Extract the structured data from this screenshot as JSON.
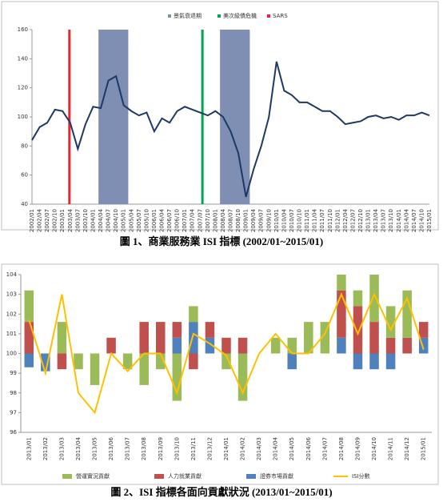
{
  "chart_data": [
    {
      "type": "line",
      "caption": "圖 1、商業服務業 ISI 指標 (2002/01~2015/01)",
      "categories": [
        "2002/01",
        "2002/04",
        "2002/07",
        "2002/10",
        "2003/01",
        "2003/04",
        "2003/07",
        "2003/10",
        "2004/01",
        "2004/04",
        "2004/07",
        "2004/10",
        "2005/01",
        "2005/04",
        "2005/07",
        "2005/10",
        "2006/01",
        "2006/04",
        "2006/07",
        "2006/10",
        "2007/01",
        "2007/04",
        "2007/07",
        "2007/10",
        "2008/01",
        "2008/04",
        "2008/07",
        "2008/10",
        "2009/01",
        "2009/04",
        "2009/07",
        "2009/10",
        "2010/01",
        "2010/04",
        "2010/07",
        "2010/10",
        "2011/01",
        "2011/04",
        "2011/07",
        "2011/10",
        "2012/01",
        "2012/04",
        "2012/07",
        "2012/10",
        "2013/01",
        "2013/04",
        "2013/07",
        "2013/10",
        "2014/01",
        "2014/04",
        "2014/07",
        "2014/10",
        "2015/01"
      ],
      "values": [
        84,
        93,
        96,
        105,
        104,
        96,
        78,
        95,
        107,
        106,
        125,
        128,
        108,
        104,
        101,
        103,
        90,
        99,
        96,
        104,
        107,
        105,
        103,
        101,
        104,
        100,
        90,
        75,
        45,
        64,
        80,
        100,
        138,
        118,
        115,
        110,
        110,
        107,
        104,
        104,
        100,
        95,
        96,
        97,
        100,
        101,
        99,
        100,
        98,
        101,
        101,
        103,
        101
      ],
      "color": "#1f3864",
      "series": [
        {
          "name": "景氣衰退期",
          "color": "#7f8fb3",
          "spans": [
            [
              8.7,
              12.6
            ],
            [
              24.6,
              28.5
            ]
          ]
        },
        {
          "name": "美次級債危機",
          "color": "#00a651",
          "at": [
            22.3
          ]
        },
        {
          "name": "SARS",
          "color": "#e8262c",
          "at": [
            4.9
          ]
        }
      ],
      "ylim": [
        40,
        160
      ],
      "yticks": [
        40,
        60,
        80,
        100,
        120,
        140,
        160
      ],
      "grid": false
    },
    {
      "type": "bar",
      "caption": "圖 2、ISI 指標各面向貢獻狀況 (2013/01~2015/01)",
      "categories": [
        "2013/01",
        "2013/02",
        "2013/03",
        "2013/04",
        "2013/05",
        "2013/06",
        "2013/07",
        "2013/08",
        "2013/09",
        "2013/10",
        "2013/11",
        "2013/12",
        "2014/01",
        "2014/02",
        "2014/03",
        "2014/04",
        "2014/05",
        "2014/06",
        "2014/07",
        "2014/08",
        "2014/09",
        "2014/10",
        "2014/11",
        "2014/12",
        "2015/01"
      ],
      "base": 100,
      "series": [
        {
          "name": "營運實況貢獻",
          "color": "#9bbb59",
          "values": [
            1.6,
            0,
            1.6,
            -0.8,
            -1.6,
            0,
            -0.8,
            -1.6,
            -0.8,
            -2.4,
            0.8,
            0,
            -0.8,
            -2.4,
            0,
            0.8,
            0.8,
            1.6,
            1.6,
            0.8,
            0.8,
            2.4,
            1.6,
            2.4,
            0
          ]
        },
        {
          "name": "人力就業貢獻",
          "color": "#c0504d",
          "values": [
            1.6,
            0,
            -0.8,
            0,
            0,
            0.8,
            0,
            1.6,
            1.6,
            0.8,
            -0.8,
            0.8,
            0.8,
            0.8,
            0,
            0,
            0,
            0,
            0,
            2.4,
            2.4,
            1.6,
            0.8,
            0.8,
            0.8
          ]
        },
        {
          "name": "證券市場貢獻",
          "color": "#4f81bd",
          "values": [
            -0.7,
            -0.9,
            0,
            0,
            0,
            0,
            0,
            0,
            0,
            0.8,
            1.6,
            0.8,
            0,
            0,
            0,
            0,
            -0.8,
            0,
            0,
            0.8,
            -0.8,
            -0.8,
            -0.8,
            0,
            0.8
          ]
        },
        {
          "name": "ISI分數",
          "color": "#ffc000",
          "type": "line",
          "values": [
            101.7,
            99,
            103,
            98,
            97,
            100,
            99.1,
            100,
            100,
            98,
            101,
            100.5,
            99.9,
            98,
            100,
            101,
            100,
            100,
            101,
            103,
            101,
            103,
            101.2,
            102.8,
            100.2
          ]
        }
      ],
      "ylim": [
        96,
        104
      ],
      "yticks": [
        96,
        97,
        98,
        99,
        100,
        101,
        102,
        103,
        104
      ],
      "grid": false
    }
  ]
}
